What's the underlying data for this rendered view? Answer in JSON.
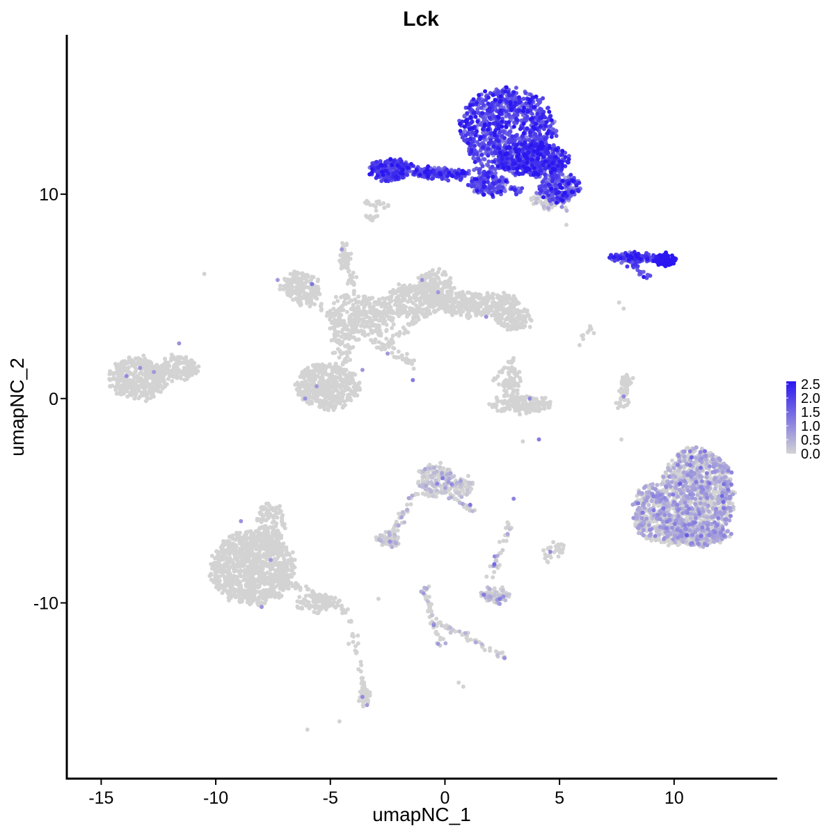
{
  "chart_data": {
    "type": "scatter",
    "title": "Lck",
    "xlabel": "umapNC_1",
    "ylabel": "umapNC_2",
    "xlim": [
      -16.5,
      14.5
    ],
    "ylim": [
      -18.6,
      17.8
    ],
    "xticks": [
      -15,
      -10,
      -5,
      0,
      5,
      10
    ],
    "yticks": [
      -10,
      0,
      10
    ],
    "xtick_labels": [
      "-15",
      "-10",
      "-5",
      "0",
      "5",
      "10"
    ],
    "ytick_labels": [
      "-10",
      "0",
      "10"
    ],
    "grid": false,
    "legend_position": "right",
    "color_scale": {
      "low": "#d3d3d3",
      "high": "#2a16f0",
      "min": 0,
      "max": 2.6,
      "breaks": [
        2.5,
        2.0,
        1.5,
        1.0,
        0.5,
        0.0
      ],
      "break_labels": [
        "2.5",
        "2.0",
        "1.5",
        "1.0",
        "0.5",
        "0.0"
      ]
    },
    "clusters": [
      {
        "cx": 2.7,
        "cy": 13.2,
        "rx": 2.1,
        "ry": 2.0,
        "n": 900,
        "expr": 1.8,
        "spread": 0.5
      },
      {
        "cx": 3.8,
        "cy": 11.7,
        "rx": 1.6,
        "ry": 0.8,
        "n": 420,
        "expr": 2.0,
        "spread": 0.45
      },
      {
        "cx": 5.0,
        "cy": 10.3,
        "rx": 0.9,
        "ry": 0.7,
        "n": 220,
        "expr": 1.6,
        "spread": 0.5
      },
      {
        "cx": -2.4,
        "cy": 11.2,
        "rx": 0.9,
        "ry": 0.5,
        "n": 230,
        "expr": 1.9,
        "spread": 0.4
      },
      {
        "cx": -0.2,
        "cy": 11.0,
        "rx": 1.3,
        "ry": 0.25,
        "n": 160,
        "expr": 1.8,
        "spread": 0.45
      },
      {
        "cx": 1.9,
        "cy": 10.5,
        "rx": 0.8,
        "ry": 0.6,
        "n": 140,
        "expr": 1.6,
        "spread": 0.5
      },
      {
        "cx": 4.4,
        "cy": 9.7,
        "rx": 0.6,
        "ry": 0.4,
        "n": 60,
        "expr": 0.2,
        "spread": 0.3
      },
      {
        "cx": 8.3,
        "cy": 6.9,
        "rx": 1.2,
        "ry": 0.2,
        "n": 120,
        "expr": 2.0,
        "spread": 0.4
      },
      {
        "cx": 9.6,
        "cy": 6.8,
        "rx": 0.45,
        "ry": 0.25,
        "n": 110,
        "expr": 2.5,
        "spread": 0.2
      },
      {
        "cx": -13.4,
        "cy": 1.0,
        "rx": 1.3,
        "ry": 1.0,
        "n": 380,
        "expr": 0,
        "spread": 0
      },
      {
        "cx": -11.6,
        "cy": 1.5,
        "rx": 0.8,
        "ry": 0.6,
        "n": 100,
        "expr": 0,
        "spread": 0
      },
      {
        "cx": -6.3,
        "cy": 5.4,
        "rx": 0.8,
        "ry": 0.8,
        "n": 180,
        "expr": 0,
        "spread": 0
      },
      {
        "cx": -5.1,
        "cy": 0.6,
        "rx": 1.4,
        "ry": 1.1,
        "n": 420,
        "expr": 0,
        "spread": 0
      },
      {
        "cx": -4.4,
        "cy": 3.4,
        "rx": 0.6,
        "ry": 1.7,
        "n": 150,
        "expr": 0,
        "spread": 0
      },
      {
        "cx": -3.2,
        "cy": 4.0,
        "rx": 1.0,
        "ry": 1.0,
        "n": 220,
        "expr": 0,
        "spread": 0
      },
      {
        "cx": -1.3,
        "cy": 4.8,
        "rx": 1.3,
        "ry": 0.8,
        "n": 220,
        "expr": 0,
        "spread": 0
      },
      {
        "cx": -0.4,
        "cy": 5.4,
        "rx": 0.8,
        "ry": 0.9,
        "n": 180,
        "expr": 0,
        "spread": 0
      },
      {
        "cx": 1.5,
        "cy": 4.6,
        "rx": 1.8,
        "ry": 0.6,
        "n": 320,
        "expr": 0,
        "spread": 0
      },
      {
        "cx": 3.0,
        "cy": 3.9,
        "rx": 0.9,
        "ry": 0.5,
        "n": 120,
        "expr": 0,
        "spread": 0
      },
      {
        "cx": -4.4,
        "cy": 7.0,
        "rx": 0.15,
        "ry": 0.6,
        "n": 30,
        "expr": 0,
        "spread": 0
      },
      {
        "cx": 3.3,
        "cy": -0.3,
        "rx": 1.3,
        "ry": 0.4,
        "n": 180,
        "expr": 0,
        "spread": 0
      },
      {
        "cx": 2.9,
        "cy": 0.8,
        "rx": 0.4,
        "ry": 0.8,
        "n": 70,
        "expr": 0,
        "spread": 0
      },
      {
        "cx": 7.9,
        "cy": 0.4,
        "rx": 0.2,
        "ry": 0.8,
        "n": 40,
        "expr": 0,
        "spread": 0
      },
      {
        "cx": 11.0,
        "cy": -4.8,
        "rx": 1.6,
        "ry": 2.4,
        "n": 1200,
        "expr": 0.45,
        "spread": 0.35
      },
      {
        "cx": 9.0,
        "cy": -5.6,
        "rx": 0.8,
        "ry": 1.4,
        "n": 300,
        "expr": 0.45,
        "spread": 0.35
      },
      {
        "cx": 10.8,
        "cy": -6.6,
        "rx": 1.6,
        "ry": 0.6,
        "n": 260,
        "expr": 0.45,
        "spread": 0.35
      },
      {
        "cx": -0.4,
        "cy": -4.0,
        "rx": 0.8,
        "ry": 0.8,
        "n": 160,
        "expr": 0.15,
        "spread": 0.3
      },
      {
        "cx": 0.8,
        "cy": -4.3,
        "rx": 0.4,
        "ry": 0.5,
        "n": 50,
        "expr": 0.15,
        "spread": 0.3
      },
      {
        "cx": -2.5,
        "cy": -6.9,
        "rx": 0.5,
        "ry": 0.3,
        "n": 50,
        "expr": 0.1,
        "spread": 0.2
      },
      {
        "cx": 2.2,
        "cy": -9.6,
        "rx": 0.6,
        "ry": 0.4,
        "n": 90,
        "expr": 0.15,
        "spread": 0.3
      },
      {
        "cx": -8.4,
        "cy": -8.3,
        "rx": 1.8,
        "ry": 1.8,
        "n": 1000,
        "expr": 0,
        "spread": 0
      },
      {
        "cx": -7.6,
        "cy": -6.2,
        "rx": 0.6,
        "ry": 1.1,
        "n": 120,
        "expr": 0,
        "spread": 0
      },
      {
        "cx": -5.6,
        "cy": -10.0,
        "rx": 1.0,
        "ry": 0.4,
        "n": 90,
        "expr": 0,
        "spread": 0
      },
      {
        "cx": -3.5,
        "cy": -14.5,
        "rx": 0.2,
        "ry": 0.6,
        "n": 40,
        "expr": 0,
        "spread": 0
      },
      {
        "cx": 5.0,
        "cy": -7.4,
        "rx": 0.2,
        "ry": 0.3,
        "n": 20,
        "expr": 0,
        "spread": 0
      }
    ],
    "filaments": [
      {
        "from": [
          -2.6,
          11.5
        ],
        "to": [
          0.6,
          10.9
        ],
        "n": 45,
        "expr": 1.8
      },
      {
        "from": [
          1.0,
          13.0
        ],
        "to": [
          1.8,
          10.2
        ],
        "n": 40,
        "expr": 1.7
      },
      {
        "from": [
          2.2,
          10.4
        ],
        "to": [
          3.4,
          10.1
        ],
        "n": 25,
        "expr": 1.6
      },
      {
        "from": [
          4.4,
          11.0
        ],
        "to": [
          5.3,
          9.2
        ],
        "n": 35,
        "expr": 0.8
      },
      {
        "from": [
          -3.3,
          9.0
        ],
        "to": [
          -3.1,
          8.7
        ],
        "n": 10,
        "expr": 0
      },
      {
        "from": [
          7.8,
          6.9
        ],
        "to": [
          8.9,
          5.9
        ],
        "n": 25,
        "expr": 1.8
      },
      {
        "from": [
          -4.4,
          7.5
        ],
        "to": [
          -3.8,
          4.2
        ],
        "n": 45,
        "expr": 0
      },
      {
        "from": [
          -3.2,
          2.9
        ],
        "to": [
          -1.4,
          1.7
        ],
        "n": 40,
        "expr": 0
      },
      {
        "from": [
          -2.6,
          2.6
        ],
        "to": [
          -1.1,
          4.0
        ],
        "n": 30,
        "expr": 0
      },
      {
        "from": [
          -6.4,
          5.2
        ],
        "to": [
          -4.4,
          3.6
        ],
        "n": 40,
        "expr": 0
      },
      {
        "from": [
          2.1,
          0.9
        ],
        "to": [
          3.0,
          2.0
        ],
        "n": 18,
        "expr": 0
      },
      {
        "from": [
          8.1,
          1.2
        ],
        "to": [
          7.6,
          -0.4
        ],
        "n": 20,
        "expr": 0
      },
      {
        "from": [
          -1.3,
          -4.6
        ],
        "to": [
          -2.3,
          -6.6
        ],
        "n": 40,
        "expr": 0.1
      },
      {
        "from": [
          -2.7,
          -6.8
        ],
        "to": [
          -2.0,
          -7.2
        ],
        "n": 15,
        "expr": 0.1
      },
      {
        "from": [
          0.2,
          -4.8
        ],
        "to": [
          1.3,
          -5.5
        ],
        "n": 25,
        "expr": 0.15
      },
      {
        "from": [
          2.9,
          -6.0
        ],
        "to": [
          1.9,
          -9.0
        ],
        "n": 30,
        "expr": 0.15
      },
      {
        "from": [
          -0.9,
          -9.3
        ],
        "to": [
          -0.2,
          -12.1
        ],
        "n": 45,
        "expr": 0.1
      },
      {
        "from": [
          -0.2,
          -11.0
        ],
        "to": [
          2.6,
          -12.6
        ],
        "n": 45,
        "expr": 0.1
      },
      {
        "from": [
          -7.3,
          -8.7
        ],
        "to": [
          -4.3,
          -10.4
        ],
        "n": 70,
        "expr": 0
      },
      {
        "from": [
          -4.2,
          -10.6
        ],
        "to": [
          -3.6,
          -14.0
        ],
        "n": 22,
        "expr": 0
      },
      {
        "from": [
          -12.4,
          1.4
        ],
        "to": [
          -10.7,
          1.4
        ],
        "n": 30,
        "expr": 0
      },
      {
        "from": [
          4.5,
          -7.0
        ],
        "to": [
          4.6,
          -8.1
        ],
        "n": 12,
        "expr": 0.2
      },
      {
        "from": [
          6.4,
          3.6
        ],
        "to": [
          5.6,
          2.0
        ],
        "n": 10,
        "expr": 0
      },
      {
        "from": [
          -3.5,
          9.6
        ],
        "to": [
          -2.5,
          9.4
        ],
        "n": 18,
        "expr": 0
      }
    ],
    "highlights": [
      {
        "x": -13.9,
        "y": 1.1,
        "v": 1.0
      },
      {
        "x": -13.3,
        "y": 1.5,
        "v": 0.9
      },
      {
        "x": -12.7,
        "y": 1.3,
        "v": 0.8
      },
      {
        "x": -11.6,
        "y": 2.7,
        "v": 0.9
      },
      {
        "x": -7.3,
        "y": 5.8,
        "v": 0.8
      },
      {
        "x": -5.8,
        "y": 5.6,
        "v": 1.3
      },
      {
        "x": -4.5,
        "y": 7.3,
        "v": 0.8
      },
      {
        "x": -1.0,
        "y": 5.8,
        "v": 0.9
      },
      {
        "x": -0.3,
        "y": 5.2,
        "v": 0.8
      },
      {
        "x": -2.5,
        "y": 2.2,
        "v": 0.8
      },
      {
        "x": -1.4,
        "y": 0.9,
        "v": 1.2
      },
      {
        "x": -3.6,
        "y": 1.4,
        "v": 0.8
      },
      {
        "x": -6.1,
        "y": 0.0,
        "v": 0.9
      },
      {
        "x": -5.6,
        "y": 0.6,
        "v": 0.8
      },
      {
        "x": 1.8,
        "y": 4.0,
        "v": 0.9
      },
      {
        "x": 3.7,
        "y": 0.0,
        "v": 1.0
      },
      {
        "x": 4.1,
        "y": -2.0,
        "v": 1.2
      },
      {
        "x": 7.8,
        "y": 0.1,
        "v": 1.0
      },
      {
        "x": -8.9,
        "y": -6.0,
        "v": 0.9
      },
      {
        "x": -7.6,
        "y": -7.9,
        "v": 0.8
      },
      {
        "x": -8.0,
        "y": -10.2,
        "v": 0.9
      },
      {
        "x": -3.6,
        "y": -14.6,
        "v": 1.0
      },
      {
        "x": -3.4,
        "y": -15.0,
        "v": 0.8
      },
      {
        "x": -0.1,
        "y": -3.9,
        "v": 1.2
      },
      {
        "x": 0.3,
        "y": -4.2,
        "v": 1.0
      },
      {
        "x": 1.1,
        "y": -5.2,
        "v": 1.3
      },
      {
        "x": 3.0,
        "y": -4.9,
        "v": 1.1
      },
      {
        "x": 1.7,
        "y": -9.6,
        "v": 1.2
      },
      {
        "x": 2.4,
        "y": -9.8,
        "v": 1.2
      },
      {
        "x": 4.6,
        "y": -7.5,
        "v": 1.0
      },
      {
        "x": -2.4,
        "y": -7.0,
        "v": 0.9
      },
      {
        "x": -0.3,
        "y": -12.0,
        "v": 0.8
      },
      {
        "x": 2.6,
        "y": -12.7,
        "v": 0.9
      }
    ],
    "singletons": [
      {
        "x": -10.5,
        "y": 6.1
      },
      {
        "x": -3.0,
        "y": 9.2
      },
      {
        "x": 5.3,
        "y": 8.5
      },
      {
        "x": 7.6,
        "y": 4.7
      },
      {
        "x": 7.8,
        "y": 4.4
      },
      {
        "x": 3.4,
        "y": -2.1
      },
      {
        "x": -4.2,
        "y": -12.0
      },
      {
        "x": -4.6,
        "y": -15.8
      },
      {
        "x": -6.0,
        "y": -16.2
      },
      {
        "x": 0.6,
        "y": -13.9
      },
      {
        "x": 0.8,
        "y": -14.1
      },
      {
        "x": -0.7,
        "y": -9.2
      },
      {
        "x": 6.5,
        "y": 3.2
      },
      {
        "x": 7.7,
        "y": -2.0
      },
      {
        "x": -3.8,
        "y": -11.6
      },
      {
        "x": -2.9,
        "y": -9.8
      }
    ]
  }
}
